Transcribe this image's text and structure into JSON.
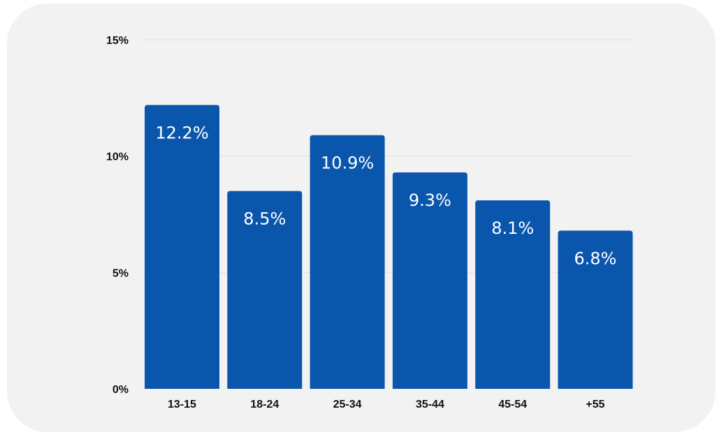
{
  "colors": {
    "bar": "#0b56ad",
    "background": "#f2f2f2",
    "grid": "#e2e2e2",
    "text": "#111111"
  },
  "chart_data": {
    "type": "bar",
    "categories": [
      "13-15",
      "18-24",
      "25-34",
      "35-44",
      "45-54",
      "+55"
    ],
    "values": [
      12.2,
      8.5,
      10.9,
      9.3,
      8.1,
      6.8
    ],
    "data_labels": [
      "12.2%",
      "8.5%",
      "10.9%",
      "9.3%",
      "8.1%",
      "6.8%"
    ],
    "y_ticks": [
      0,
      5,
      10,
      15
    ],
    "y_tick_labels": [
      "0%",
      "5%",
      "10%",
      "15%"
    ],
    "ylim": [
      0,
      15
    ],
    "grid": true,
    "legend": "none"
  }
}
